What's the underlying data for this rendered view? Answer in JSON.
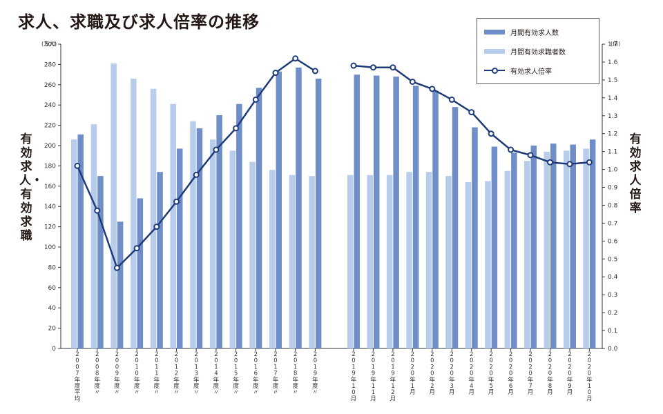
{
  "title": "求人、求職及び求人倍率の推移",
  "left_unit": "(万人)",
  "right_unit": "(倍)",
  "left_axis_label": "有効求人・有効求職",
  "right_axis_label": "有効求人倍率",
  "colors": {
    "job_offers": "#6f8ec8",
    "job_seekers": "#b8cdeb",
    "ratio": "#1f3a78"
  },
  "chart_data": {
    "type": "bar",
    "title": "求人、求職及び求人倍率の推移",
    "categories": [
      "2007年度平均",
      "2008年度〃",
      "2009年度〃",
      "2010年度〃",
      "2011年度〃",
      "2012年度〃",
      "2013年度〃",
      "2014年度〃",
      "2015年度〃",
      "2016年度〃",
      "2017年度〃",
      "2018年度〃",
      "2019年度〃",
      "2019年10月",
      "2019年11月",
      "2019年12月",
      "2020年1月",
      "2020年2月",
      "2020年3月",
      "2020年4月",
      "2020年5月",
      "2020年6月",
      "2020年7月",
      "2020年8月",
      "2020年9月",
      "2020年10月"
    ],
    "series": [
      {
        "name": "月間有効求職者数",
        "type": "bar",
        "axis": "left",
        "values": [
          206,
          221,
          281,
          266,
          256,
          241,
          224,
          206,
          195,
          184,
          176,
          171,
          170,
          171,
          171,
          171,
          174,
          174,
          170,
          164,
          165,
          175,
          185,
          194,
          195,
          197
        ]
      },
      {
        "name": "月間有効求人数",
        "type": "bar",
        "axis": "left",
        "values": [
          211,
          170,
          125,
          148,
          174,
          197,
          217,
          230,
          241,
          257,
          273,
          277,
          266,
          270,
          269,
          268,
          259,
          254,
          238,
          218,
          199,
          193,
          200,
          202,
          201,
          206
        ]
      },
      {
        "name": "有効求人倍率",
        "type": "line",
        "axis": "right",
        "values": [
          1.02,
          0.77,
          0.45,
          0.56,
          0.68,
          0.82,
          0.97,
          1.11,
          1.23,
          1.39,
          1.54,
          1.62,
          1.55,
          1.58,
          1.57,
          1.57,
          1.49,
          1.45,
          1.39,
          1.32,
          1.2,
          1.11,
          1.08,
          1.04,
          1.03,
          1.04
        ]
      }
    ],
    "left_ylim": [
      0,
      300
    ],
    "left_yticks": [
      0,
      20,
      40,
      60,
      80,
      100,
      120,
      140,
      160,
      180,
      200,
      220,
      240,
      260,
      280,
      300
    ],
    "right_ylim": [
      0,
      1.7
    ],
    "right_yticks": [
      0.0,
      0.1,
      0.2,
      0.3,
      0.4,
      0.5,
      0.6,
      0.7,
      0.8,
      0.9,
      1.0,
      1.1,
      1.2,
      1.3,
      1.4,
      1.5,
      1.6,
      1.7
    ],
    "legend_position": "top-right",
    "line_segments": [
      [
        0,
        12
      ],
      [
        13,
        25
      ]
    ],
    "grid": false
  }
}
